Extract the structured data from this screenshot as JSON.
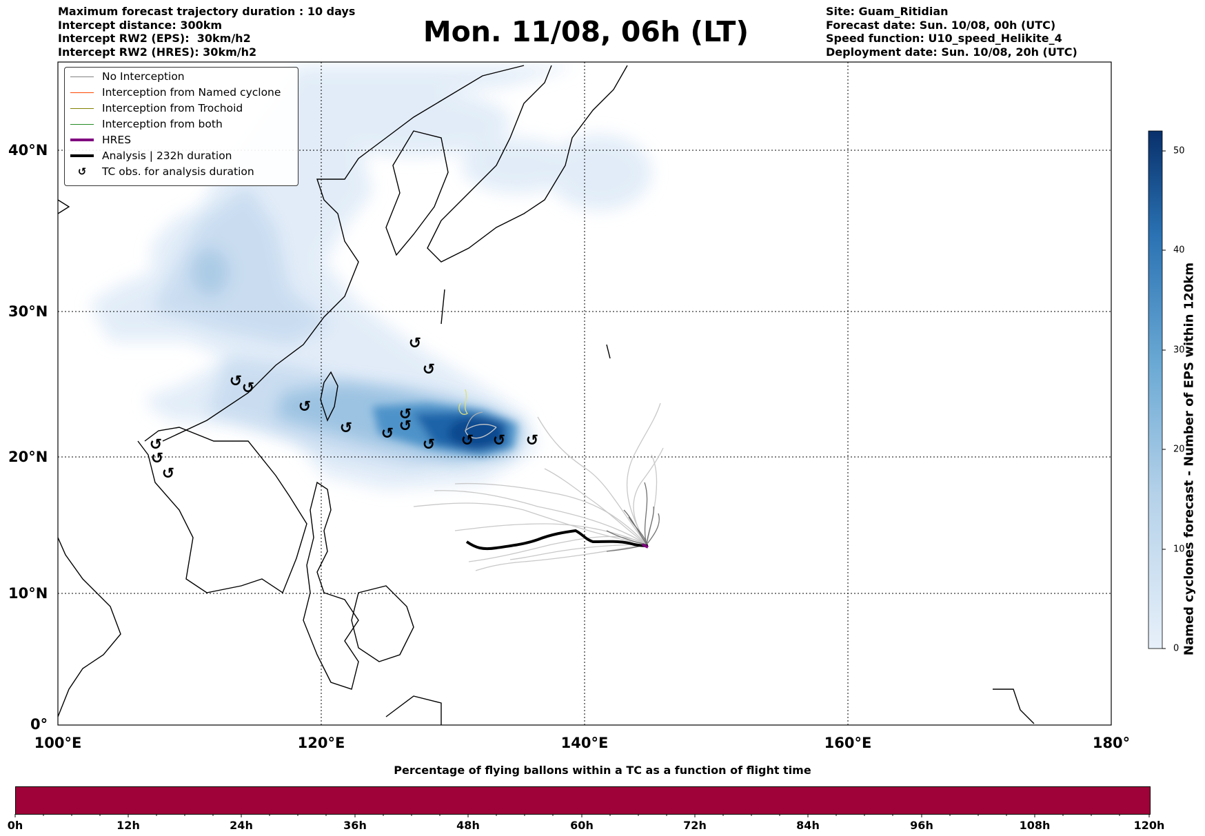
{
  "header_left": [
    "Maximum forecast trajectory duration : 10 days",
    "Intercept distance: 300km",
    "Intercept RW2 (EPS):  30km/h2",
    "Intercept RW2 (HRES): 30km/h2"
  ],
  "header_right": [
    "Site: Guam_Ritidian",
    "Forecast date: Sun. 10/08, 00h (UTC)",
    "Speed function: U10_speed_Helikite_4",
    "Deployment date: Sun. 10/08, 20h (UTC)"
  ],
  "title": "Mon. 11/08, 06h (LT)",
  "map": {
    "lon_labels": [
      "100°E",
      "120°E",
      "140°E",
      "160°E",
      "180°"
    ],
    "lat_labels": [
      "0°",
      "10°N",
      "20°N",
      "30°N",
      "40°N"
    ]
  },
  "legend": {
    "items": [
      {
        "label": "No Interception",
        "color": "#808080"
      },
      {
        "label": "Interception from Named cyclone",
        "color": "#ff4500"
      },
      {
        "label": "Interception from Trochoid",
        "color": "#808000"
      },
      {
        "label": "Interception from both",
        "color": "#228b22"
      },
      {
        "label": "HRES",
        "color": "#800080"
      },
      {
        "label": "Analysis | 232h duration",
        "color": "#000000"
      },
      {
        "label": "TC obs. for analysis duration",
        "color": "#000000"
      }
    ]
  },
  "colorbar": {
    "title": "Named cyclones forecast - Number of EPS within 120km",
    "ticks": [
      "0",
      "10",
      "20",
      "30",
      "40",
      "50"
    ],
    "min": 0,
    "max": 52,
    "color_low": "#e7f0fa",
    "color_high": "#08306b"
  },
  "progress_bar": {
    "title": "Percentage of flying ballons within a TC as a function of flight time",
    "color": "#9e0239",
    "ticks": [
      "0h",
      "12h",
      "24h",
      "36h",
      "48h",
      "60h",
      "72h",
      "84h",
      "96h",
      "108h",
      "120h"
    ]
  }
}
